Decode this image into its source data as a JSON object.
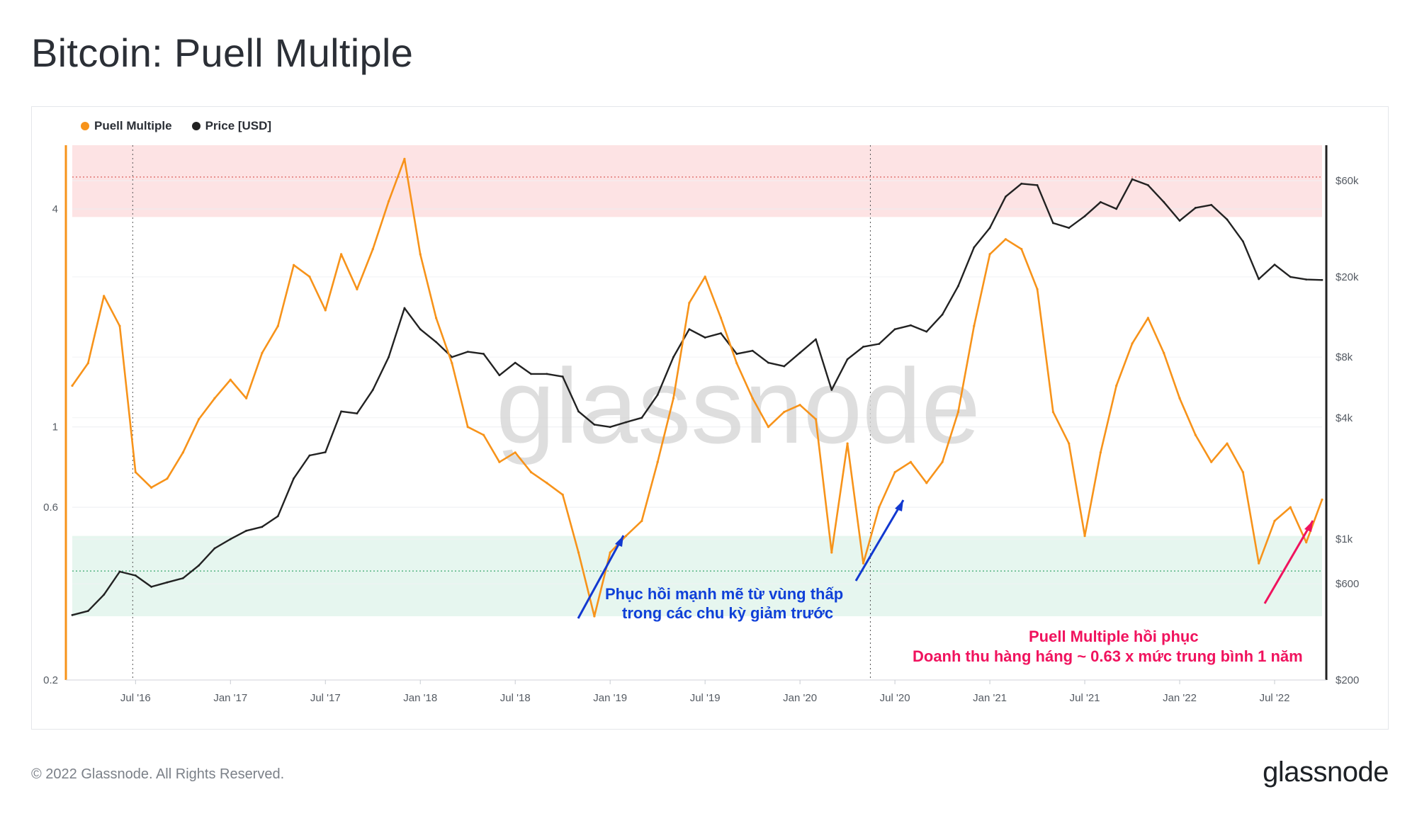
{
  "title": "Bitcoin: Puell Multiple",
  "footer": "© 2022 Glassnode. All Rights Reserved.",
  "logo": "glassnode",
  "watermark": "glassnode",
  "colors": {
    "puell": "#f7931a",
    "price": "#222222",
    "redZone": "#fde3e4",
    "greenZone": "#e6f6ef",
    "blueArrow": "#1238d0",
    "redArrow": "#f0135e"
  },
  "chart_data": {
    "type": "line",
    "title": "Bitcoin: Puell Multiple",
    "legend_position": "top-left",
    "x_ticks": [
      "Jul '16",
      "Jan '17",
      "Jul '17",
      "Jan '18",
      "Jul '18",
      "Jan '19",
      "Jul '19",
      "Jan '20",
      "Jul '20",
      "Jan '21",
      "Jul '21",
      "Jan '22",
      "Jul '22"
    ],
    "x_range": [
      "2016-03",
      "2022-10"
    ],
    "y_left": {
      "scale": "log",
      "ticks": [
        "0.2",
        "0.6",
        "1",
        "4"
      ],
      "range": [
        0.2,
        6
      ]
    },
    "y_right": {
      "scale": "log",
      "ticks": [
        "$200",
        "$600",
        "$1k",
        "$4k",
        "$8k",
        "$20k",
        "$60k"
      ],
      "range": [
        200,
        90000
      ]
    },
    "zones": [
      {
        "name": "red",
        "from": 3.8,
        "to": 6.0
      },
      {
        "name": "green",
        "from": 0.3,
        "to": 0.5
      }
    ],
    "series": [
      {
        "name": "Puell Multiple",
        "axis": "left",
        "x": [
          "2016-03",
          "2016-04",
          "2016-05",
          "2016-06",
          "2016-07",
          "2016-08",
          "2016-09",
          "2016-10",
          "2016-11",
          "2016-12",
          "2017-01",
          "2017-02",
          "2017-03",
          "2017-04",
          "2017-05",
          "2017-06",
          "2017-07",
          "2017-08",
          "2017-09",
          "2017-10",
          "2017-11",
          "2017-12",
          "2018-01",
          "2018-02",
          "2018-03",
          "2018-04",
          "2018-05",
          "2018-06",
          "2018-07",
          "2018-08",
          "2018-09",
          "2018-10",
          "2018-11",
          "2018-12",
          "2019-01",
          "2019-02",
          "2019-03",
          "2019-04",
          "2019-05",
          "2019-06",
          "2019-07",
          "2019-08",
          "2019-09",
          "2019-10",
          "2019-11",
          "2019-12",
          "2020-01",
          "2020-02",
          "2020-03",
          "2020-04",
          "2020-05",
          "2020-06",
          "2020-07",
          "2020-08",
          "2020-09",
          "2020-10",
          "2020-11",
          "2020-12",
          "2021-01",
          "2021-02",
          "2021-03",
          "2021-04",
          "2021-05",
          "2021-06",
          "2021-07",
          "2021-08",
          "2021-09",
          "2021-10",
          "2021-11",
          "2021-12",
          "2022-01",
          "2022-02",
          "2022-03",
          "2022-04",
          "2022-05",
          "2022-06",
          "2022-07",
          "2022-08",
          "2022-09",
          "2022-10"
        ],
        "values": [
          1.3,
          1.5,
          2.3,
          1.9,
          0.75,
          0.68,
          0.72,
          0.85,
          1.05,
          1.2,
          1.35,
          1.2,
          1.6,
          1.9,
          2.8,
          2.6,
          2.1,
          3.0,
          2.4,
          3.1,
          4.2,
          5.5,
          3.0,
          2.0,
          1.5,
          1.0,
          0.95,
          0.8,
          0.85,
          0.75,
          0.7,
          0.65,
          0.45,
          0.3,
          0.45,
          0.5,
          0.55,
          0.8,
          1.2,
          2.2,
          2.6,
          2.0,
          1.5,
          1.2,
          1.0,
          1.1,
          1.15,
          1.05,
          0.45,
          0.9,
          0.42,
          0.6,
          0.75,
          0.8,
          0.7,
          0.8,
          1.1,
          1.9,
          3.0,
          3.3,
          3.1,
          2.4,
          1.1,
          0.9,
          0.5,
          0.85,
          1.3,
          1.7,
          2.0,
          1.6,
          1.2,
          0.95,
          0.8,
          0.9,
          0.75,
          0.42,
          0.55,
          0.6,
          0.48,
          0.63
        ]
      },
      {
        "name": "Price [USD]",
        "axis": "right",
        "x": [
          "2016-03",
          "2016-04",
          "2016-05",
          "2016-06",
          "2016-07",
          "2016-08",
          "2016-09",
          "2016-10",
          "2016-11",
          "2016-12",
          "2017-01",
          "2017-02",
          "2017-03",
          "2017-04",
          "2017-05",
          "2017-06",
          "2017-07",
          "2017-08",
          "2017-09",
          "2017-10",
          "2017-11",
          "2017-12",
          "2018-01",
          "2018-02",
          "2018-03",
          "2018-04",
          "2018-05",
          "2018-06",
          "2018-07",
          "2018-08",
          "2018-09",
          "2018-10",
          "2018-11",
          "2018-12",
          "2019-01",
          "2019-02",
          "2019-03",
          "2019-04",
          "2019-05",
          "2019-06",
          "2019-07",
          "2019-08",
          "2019-09",
          "2019-10",
          "2019-11",
          "2019-12",
          "2020-01",
          "2020-02",
          "2020-03",
          "2020-04",
          "2020-05",
          "2020-06",
          "2020-07",
          "2020-08",
          "2020-09",
          "2020-10",
          "2020-11",
          "2020-12",
          "2021-01",
          "2021-02",
          "2021-03",
          "2021-04",
          "2021-05",
          "2021-06",
          "2021-07",
          "2021-08",
          "2021-09",
          "2021-10",
          "2021-11",
          "2021-12",
          "2022-01",
          "2022-02",
          "2022-03",
          "2022-04",
          "2022-05",
          "2022-06",
          "2022-07",
          "2022-08",
          "2022-09",
          "2022-10"
        ],
        "values": [
          420,
          440,
          530,
          690,
          660,
          580,
          610,
          640,
          740,
          900,
          1000,
          1100,
          1150,
          1300,
          2000,
          2600,
          2700,
          4300,
          4200,
          5500,
          8000,
          14000,
          11000,
          9500,
          8000,
          8500,
          8300,
          6500,
          7500,
          6600,
          6600,
          6400,
          4300,
          3700,
          3600,
          3800,
          4000,
          5200,
          8000,
          11000,
          10000,
          10500,
          8300,
          8600,
          7500,
          7200,
          8400,
          9800,
          5500,
          7800,
          9000,
          9300,
          11000,
          11500,
          10700,
          13000,
          18000,
          28000,
          35000,
          50000,
          58000,
          57000,
          37000,
          35000,
          40000,
          47000,
          43500,
          61000,
          57000,
          47000,
          38000,
          44000,
          45500,
          38500,
          30000,
          19500,
          23000,
          20000,
          19400,
          19300
        ]
      }
    ],
    "annotations": [
      {
        "text": "Phục hồi mạnh mẽ từ vùng thấp",
        "color": "blue"
      },
      {
        "text": "trong các chu kỳ giảm trước",
        "color": "blue"
      },
      {
        "text": "Puell Multiple hồi phục",
        "color": "red"
      },
      {
        "text": "Doanh thu hàng háng ~ 0.63 x mức trung bình 1 năm",
        "color": "red"
      }
    ]
  }
}
